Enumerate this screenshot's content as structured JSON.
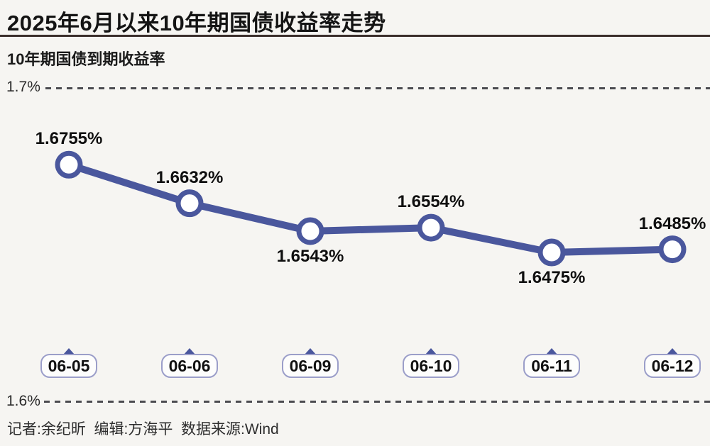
{
  "header": {
    "title": "2025年6月以来10年期国债收益率走势"
  },
  "chart": {
    "series_label": "10年期国债到期收益率",
    "y_top_label": "1.7%",
    "y_bottom_label": "1.6%"
  },
  "chart_data": {
    "type": "line",
    "title": "2025年6月以来10年期国债收益率走势",
    "series_name": "10年期国债到期收益率",
    "categories": [
      "06-05",
      "06-06",
      "06-09",
      "06-10",
      "06-11",
      "06-12"
    ],
    "values": [
      1.6755,
      1.6632,
      1.6543,
      1.6554,
      1.6475,
      1.6485
    ],
    "point_labels": [
      "1.6755%",
      "1.6632%",
      "1.6543%",
      "1.6554%",
      "1.6475%",
      "1.6485%"
    ],
    "label_positions": [
      "above",
      "above",
      "below",
      "above",
      "below",
      "above"
    ],
    "unit": "%",
    "ylim": [
      1.6,
      1.7
    ],
    "y_tick_labels": [
      "1.6%",
      "1.7%"
    ],
    "grid": "horizontal dashed lines at ylim bounds",
    "legend_position": "none",
    "line_color": "#4a579d",
    "marker": "circle, white fill, purple ring"
  },
  "footer": {
    "credits": "记者:余纪昕  编辑:方海平  数据来源:Wind"
  },
  "colors": {
    "accent": "#4a579d",
    "background": "#f6f5f2",
    "title_rule": "#3b2f2c",
    "gridline": "#4b4b50",
    "box_border": "#9b9ec9",
    "marker_fill": "#ffffff"
  }
}
